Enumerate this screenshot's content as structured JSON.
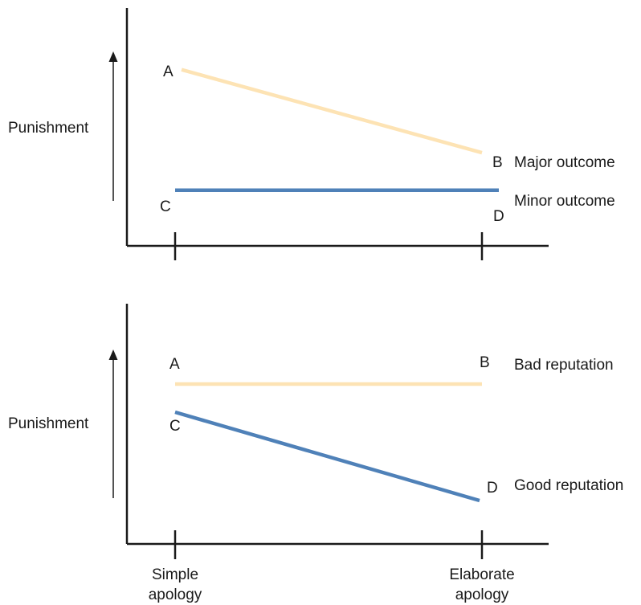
{
  "colors": {
    "series_a": "#fde3b4",
    "series_b": "#4f81b8",
    "axis": "#1a1a1a"
  },
  "x_categories": [
    "Simple apology",
    "Elaborate apology"
  ],
  "chart_data": [
    {
      "type": "line",
      "ylabel": "Punishment",
      "x": [
        "Simple apology",
        "Elaborate apology"
      ],
      "ylim": [
        0,
        10
      ],
      "series": [
        {
          "name": "Major outcome",
          "values": [
            8.1,
            3.9
          ],
          "point_labels": [
            "A",
            "B"
          ],
          "color": "#fde3b4"
        },
        {
          "name": "Minor outcome",
          "values": [
            2.0,
            2.0
          ],
          "point_labels": [
            "C",
            "D"
          ],
          "color": "#4f81b8"
        }
      ]
    },
    {
      "type": "line",
      "ylabel": "Punishment",
      "x": [
        "Simple apology",
        "Elaborate apology"
      ],
      "ylim": [
        0,
        10
      ],
      "series": [
        {
          "name": "Bad reputation",
          "values": [
            7.0,
            7.0
          ],
          "point_labels": [
            "A",
            "B"
          ],
          "color": "#fde3b4"
        },
        {
          "name": "Good reputation",
          "values": [
            5.6,
            1.2
          ],
          "point_labels": [
            "C",
            "D"
          ],
          "color": "#4f81b8"
        }
      ]
    }
  ]
}
